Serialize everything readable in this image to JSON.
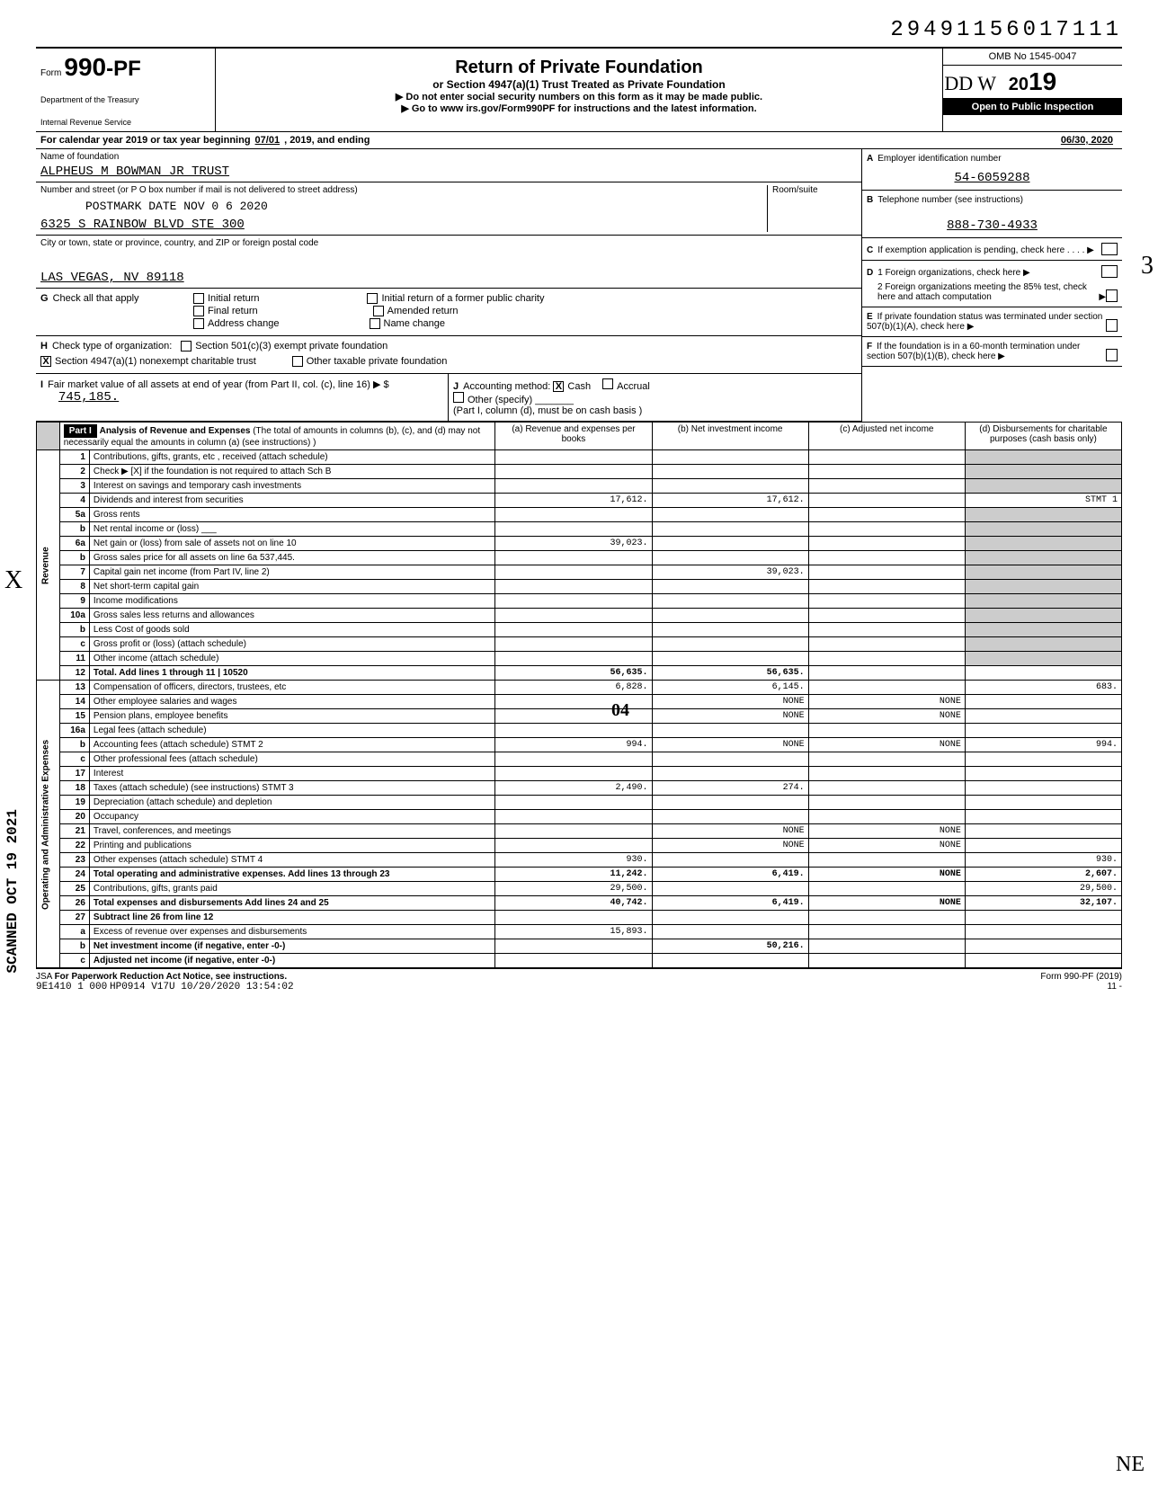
{
  "document_number": "29491156017111",
  "form": {
    "prefix": "Form",
    "number": "990",
    "suffix": "-PF",
    "dept1": "Department of the Treasury",
    "dept2": "Internal Revenue Service"
  },
  "title": "Return of Private Foundation",
  "subtitle": "or Section 4947(a)(1) Trust Treated as Private Foundation",
  "warn": "▶ Do not enter social security numbers on this form as it may be made public.",
  "goto": "▶ Go to www irs.gov/Form990PF for instructions and the latest information.",
  "omb": "OMB No 1545-0047",
  "year_prefix": "20",
  "year": "19",
  "inspection": "Open to Public Inspection",
  "calendar": {
    "label": "For calendar year 2019 or tax year beginning",
    "begin": "07/01",
    "mid": ", 2019, and ending",
    "end": "06/30, 2020"
  },
  "name_label": "Name of foundation",
  "name": "ALPHEUS M BOWMAN JR TRUST",
  "addr_label": "Number and street (or P O box number if mail is not delivered to street address)",
  "postmark": "POSTMARK DATE NOV 0 6 2020",
  "street": "6325 S RAINBOW BLVD STE 300",
  "city_label": "City or town, state or province, country, and ZIP or foreign postal code",
  "city": "LAS VEGAS, NV 89118",
  "room_label": "Room/suite",
  "sectionA": {
    "letter": "A",
    "label": "Employer identification number",
    "value": "54-6059288"
  },
  "sectionB": {
    "letter": "B",
    "label": "Telephone number (see instructions)",
    "value": "888-730-4933"
  },
  "sectionC": {
    "letter": "C",
    "label": "If exemption application is pending, check here"
  },
  "sectionD": {
    "letter": "D",
    "d1": "1 Foreign organizations, check here",
    "d2": "2 Foreign organizations meeting the 85% test, check here and attach computation"
  },
  "sectionE": {
    "letter": "E",
    "label": "If private foundation status was terminated under section 507(b)(1)(A), check here"
  },
  "sectionF": {
    "letter": "F",
    "label": "If the foundation is in a 60-month termination under section 507(b)(1)(B), check here"
  },
  "sectionG": {
    "letter": "G",
    "label": "Check all that apply",
    "opts": [
      "Initial return",
      "Final return",
      "Address change",
      "Initial return of a former public charity",
      "Amended return",
      "Name change"
    ]
  },
  "sectionH": {
    "letter": "H",
    "label": "Check type of organization:",
    "opt1": "Section 501(c)(3) exempt private foundation",
    "opt2": "Section 4947(a)(1) nonexempt charitable trust",
    "opt3": "Other taxable private foundation"
  },
  "sectionI": {
    "letter": "I",
    "label": "Fair market value of all assets at end of year (from Part II, col. (c), line 16) ▶ $",
    "value": "745,185."
  },
  "sectionJ": {
    "letter": "J",
    "label": "Accounting method:",
    "cash": "Cash",
    "accrual": "Accrual",
    "other": "Other (specify)",
    "note": "(Part I, column (d), must be on cash basis )"
  },
  "part1": {
    "header": "Part I",
    "title": "Analysis of Revenue and Expenses",
    "note": "(The total of amounts in columns (b), (c), and (d) may not necessarily equal the amounts in column (a) (see instructions) )",
    "cols": {
      "a": "(a) Revenue and expenses per books",
      "b": "(b) Net investment income",
      "c": "(c) Adjusted net income",
      "d": "(d) Disbursements for charitable purposes (cash basis only)"
    }
  },
  "vert_revenue": "Revenue",
  "vert_expenses": "Operating and Administrative Expenses",
  "rows": [
    {
      "n": "1",
      "label": "Contributions, gifts, grants, etc , received (attach schedule)"
    },
    {
      "n": "2",
      "label": "Check ▶ [X] if the foundation is not required to attach Sch B"
    },
    {
      "n": "3",
      "label": "Interest on savings and temporary cash investments"
    },
    {
      "n": "4",
      "label": "Dividends and interest from securities",
      "a": "17,612.",
      "b": "17,612.",
      "d": "STMT 1"
    },
    {
      "n": "5a",
      "label": "Gross rents"
    },
    {
      "n": "b",
      "label": "Net rental income or (loss) ___"
    },
    {
      "n": "6a",
      "label": "Net gain or (loss) from sale of assets not on line 10",
      "a": "39,023."
    },
    {
      "n": "b",
      "label": "Gross sales price for all assets on line 6a     537,445."
    },
    {
      "n": "7",
      "label": "Capital gain net income (from Part IV, line 2)",
      "b": "39,023."
    },
    {
      "n": "8",
      "label": "Net short-term capital gain"
    },
    {
      "n": "9",
      "label": "Income modifications"
    },
    {
      "n": "10a",
      "label": "Gross sales less returns and allowances"
    },
    {
      "n": "b",
      "label": "Less Cost of goods sold"
    },
    {
      "n": "c",
      "label": "Gross profit or (loss) (attach schedule)"
    },
    {
      "n": "11",
      "label": "Other income (attach schedule)"
    },
    {
      "n": "12",
      "label": "Total. Add lines 1 through 11 | 10520",
      "a": "56,635.",
      "b": "56,635.",
      "bold": true
    },
    {
      "n": "13",
      "label": "Compensation of officers, directors, trustees, etc",
      "a": "6,828.",
      "b": "6,145.",
      "d": "683."
    },
    {
      "n": "14",
      "label": "Other employee salaries and wages",
      "b": "NONE",
      "c": "NONE"
    },
    {
      "n": "15",
      "label": "Pension plans, employee benefits",
      "b": "NONE",
      "c": "NONE"
    },
    {
      "n": "16a",
      "label": "Legal fees (attach schedule)"
    },
    {
      "n": "b",
      "label": "Accounting fees (attach schedule) STMT 2",
      "a": "994.",
      "b": "NONE",
      "c": "NONE",
      "d": "994."
    },
    {
      "n": "c",
      "label": "Other professional fees (attach schedule)"
    },
    {
      "n": "17",
      "label": "Interest"
    },
    {
      "n": "18",
      "label": "Taxes (attach schedule) (see instructions) STMT 3",
      "a": "2,490.",
      "b": "274."
    },
    {
      "n": "19",
      "label": "Depreciation (attach schedule) and depletion"
    },
    {
      "n": "20",
      "label": "Occupancy"
    },
    {
      "n": "21",
      "label": "Travel, conferences, and meetings",
      "b": "NONE",
      "c": "NONE"
    },
    {
      "n": "22",
      "label": "Printing and publications",
      "b": "NONE",
      "c": "NONE"
    },
    {
      "n": "23",
      "label": "Other expenses (attach schedule) STMT 4",
      "a": "930.",
      "d": "930."
    },
    {
      "n": "24",
      "label": "Total operating and administrative expenses. Add lines 13 through 23",
      "a": "11,242.",
      "b": "6,419.",
      "c": "NONE",
      "d": "2,607.",
      "bold": true
    },
    {
      "n": "25",
      "label": "Contributions, gifts, grants paid",
      "a": "29,500.",
      "d": "29,500."
    },
    {
      "n": "26",
      "label": "Total expenses and disbursements Add lines 24 and 25",
      "a": "40,742.",
      "b": "6,419.",
      "c": "NONE",
      "d": "32,107.",
      "bold": true
    },
    {
      "n": "27",
      "label": "Subtract line 26 from line 12",
      "bold": true
    },
    {
      "n": "a",
      "label": "Excess of revenue over expenses and disbursements",
      "a": "15,893."
    },
    {
      "n": "b",
      "label": "Net investment income (if negative, enter -0-)",
      "b": "50,216.",
      "bold": true
    },
    {
      "n": "c",
      "label": "Adjusted net income (if negative, enter -0-)",
      "bold": true
    }
  ],
  "footer": {
    "jsa": "JSA",
    "paperwork": "For Paperwork Reduction Act Notice, see instructions.",
    "code": "9E1410 1 000",
    "stamp": "HP0914 V17U 10/20/2020 13:54:02",
    "form": "Form 990-PF (2019)",
    "page": "11"
  },
  "scanned": "SCANNED OCT 19 2021"
}
